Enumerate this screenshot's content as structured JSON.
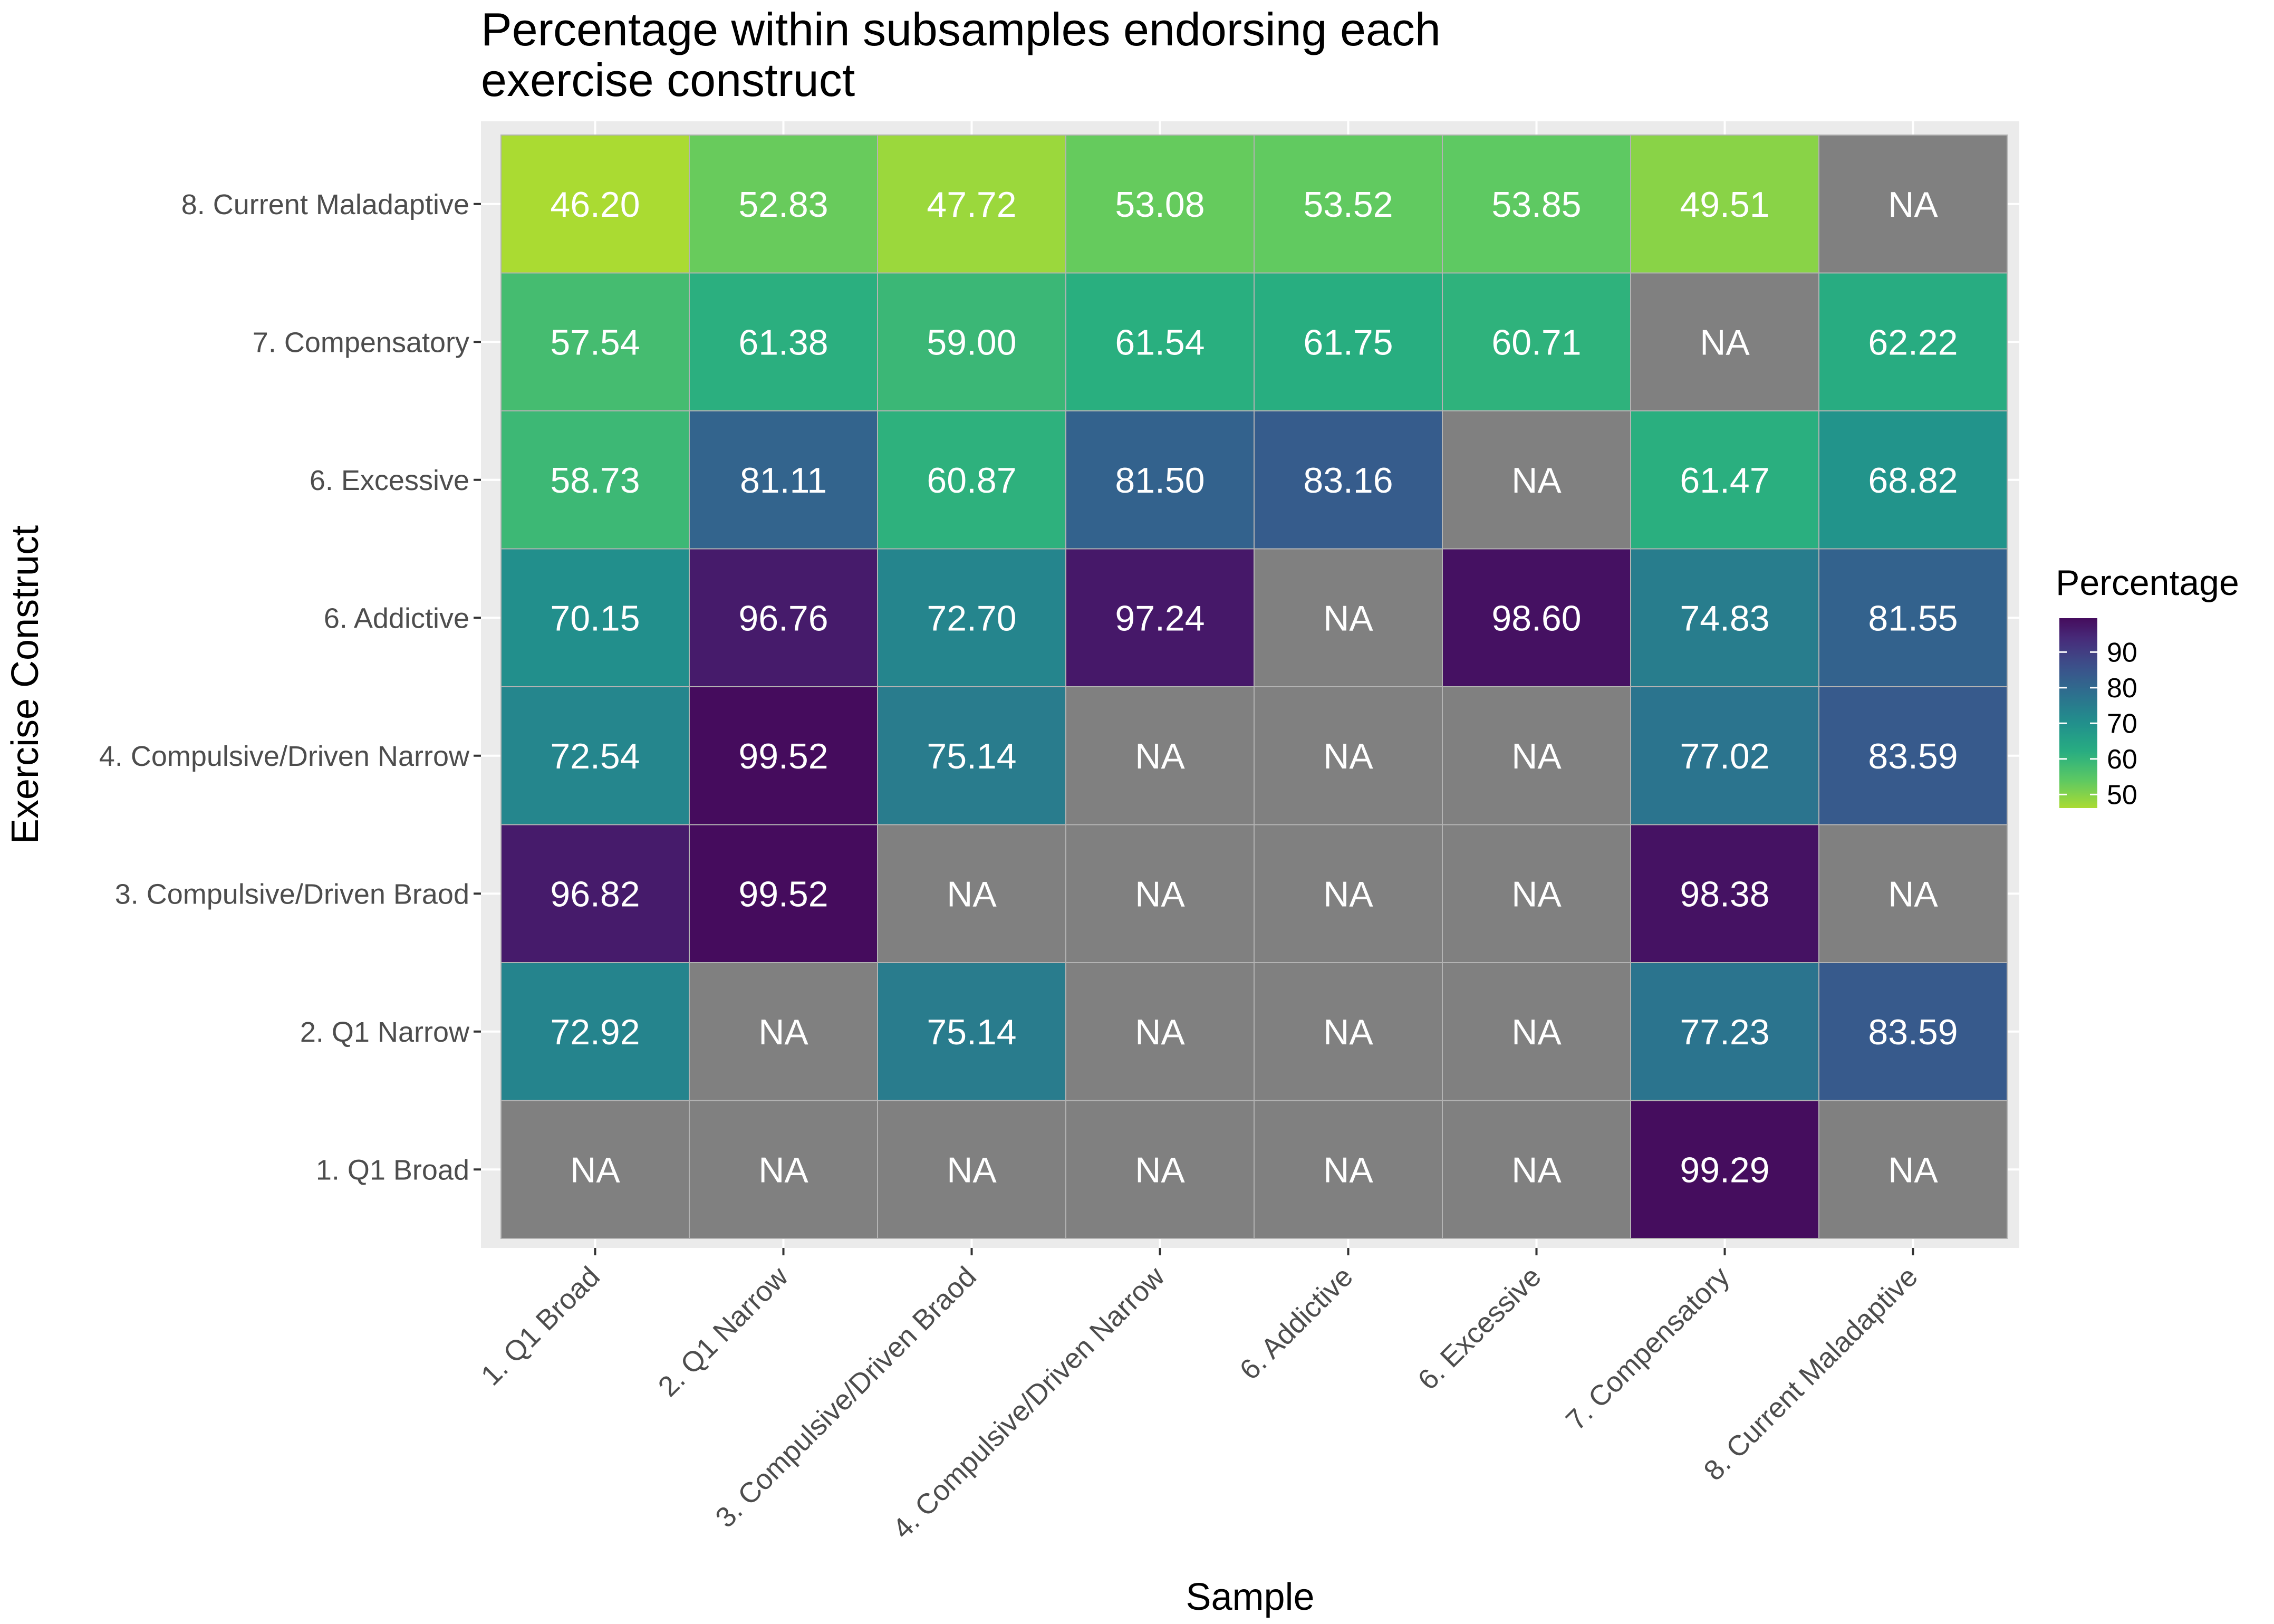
{
  "chart_data": {
    "type": "heatmap",
    "title": [
      "Percentage within subsamples endorsing each",
      "exercise construct"
    ],
    "xlabel": "Sample",
    "ylabel": "Exercise Construct",
    "x_categories": [
      "1. Q1 Broad",
      "2. Q1 Narrow",
      "3. Compulsive/Driven Braod",
      "4. Compulsive/Driven Narrow",
      "6. Addictive",
      "6. Excessive",
      "7. Compensatory",
      "8. Current Maladaptive"
    ],
    "y_categories": [
      "8. Current Maladaptive",
      "7. Compensatory",
      "6. Excessive",
      "6. Addictive",
      "4. Compulsive/Driven Narrow",
      "3. Compulsive/Driven Braod",
      "2. Q1 Narrow",
      "1. Q1 Broad"
    ],
    "values": [
      [
        46.2,
        52.83,
        47.72,
        53.08,
        53.52,
        53.85,
        49.51,
        null
      ],
      [
        57.54,
        61.38,
        59.0,
        61.54,
        61.75,
        60.71,
        null,
        62.22
      ],
      [
        58.73,
        81.11,
        60.87,
        81.5,
        83.16,
        null,
        61.47,
        68.82
      ],
      [
        70.15,
        96.76,
        72.7,
        97.24,
        null,
        98.6,
        74.83,
        81.55
      ],
      [
        72.54,
        99.52,
        75.14,
        null,
        null,
        null,
        77.02,
        83.59
      ],
      [
        96.82,
        99.52,
        null,
        null,
        null,
        null,
        98.38,
        null
      ],
      [
        72.92,
        null,
        75.14,
        null,
        null,
        null,
        77.23,
        83.59
      ],
      [
        null,
        null,
        null,
        null,
        null,
        null,
        99.29,
        null
      ]
    ],
    "na_label": "NA",
    "legend": {
      "title": "Percentage",
      "ticks": [
        50,
        60,
        70,
        80,
        90
      ],
      "range": [
        46.2,
        99.52
      ],
      "placement": "right"
    },
    "colors": {
      "na_fill": "#808080",
      "panel_background": "#ebebeb",
      "gridline": "#ffffff",
      "cell_border": "#b3b3b3",
      "cell_text": "#ffffff",
      "axis_text": "#4d4d4d",
      "palette": [
        "#440154",
        "#472d7b",
        "#3b528b",
        "#2c728e",
        "#21918c",
        "#28ae80",
        "#5ec962",
        "#addc30",
        "#fde725"
      ]
    },
    "grid": true
  }
}
